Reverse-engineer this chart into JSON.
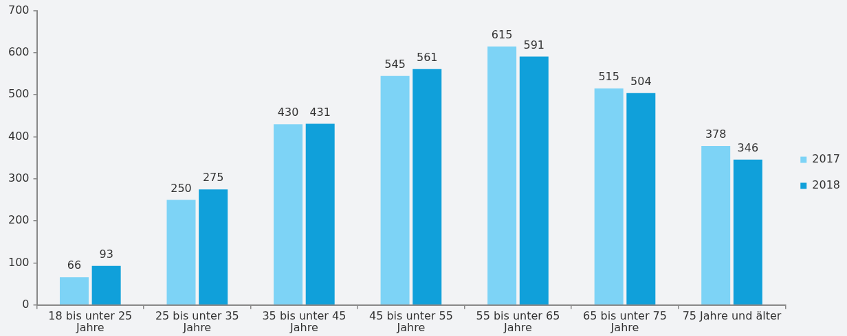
{
  "chart_data": {
    "type": "bar",
    "categories": [
      "18 bis unter 25 Jahre",
      "25 bis unter 35 Jahre",
      "35 bis unter 45 Jahre",
      "45 bis unter 55 Jahre",
      "55 bis unter 65 Jahre",
      "65 bis unter 75 Jahre",
      "75 Jahre und älter"
    ],
    "series": [
      {
        "name": "2017",
        "color": "#7dd3f6",
        "values": [
          66,
          250,
          430,
          545,
          615,
          515,
          378
        ]
      },
      {
        "name": "2018",
        "color": "#10a0da",
        "values": [
          93,
          275,
          431,
          561,
          591,
          504,
          346
        ]
      }
    ],
    "ylim": [
      0,
      700
    ],
    "yticks": [
      0,
      100,
      200,
      300,
      400,
      500,
      600,
      700
    ],
    "legend": "right",
    "data_labels": true
  }
}
